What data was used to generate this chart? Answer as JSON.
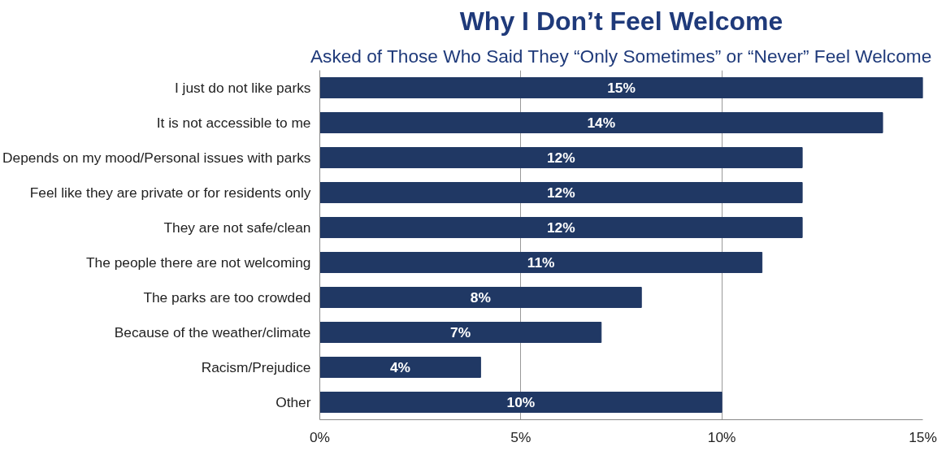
{
  "chart_data": {
    "type": "bar",
    "orientation": "horizontal",
    "title": "Why I Don’t Feel Welcome",
    "subtitle": "Asked of Those Who Said They “Only Sometimes” or “Never” Feel Welcome",
    "categories": [
      "I just do not like parks",
      "It is not accessible to me",
      "Depends on my mood/Personal issues with parks",
      "Feel like they are private or for residents only",
      "They are not safe/clean",
      "The people there are not welcoming",
      "The parks are too crowded",
      "Because of the weather/climate",
      "Racism/Prejudice",
      "Other"
    ],
    "values": [
      15,
      14,
      12,
      12,
      12,
      11,
      8,
      7,
      4,
      10
    ],
    "value_labels": [
      "15%",
      "14%",
      "12%",
      "12%",
      "12%",
      "11%",
      "8%",
      "7%",
      "4%",
      "10%"
    ],
    "color": "#203864",
    "xlim": [
      0,
      15
    ],
    "xticks": [
      {
        "value": 0,
        "label": "0%"
      },
      {
        "value": 5,
        "label": "5%"
      },
      {
        "value": 10,
        "label": "10%"
      },
      {
        "value": 15,
        "label": "15%"
      }
    ],
    "grid": "x"
  }
}
